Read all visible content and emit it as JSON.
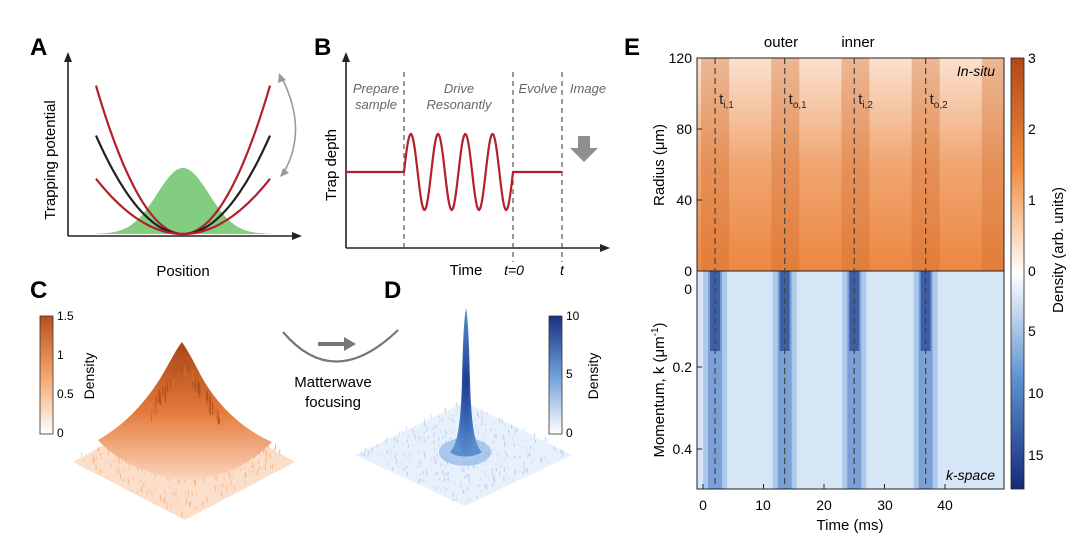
{
  "panels": {
    "A": {
      "letter": "A",
      "xlabel": "Position",
      "ylabel": "Trapping potential",
      "colors": {
        "red": "#b22028",
        "black": "#222222",
        "green": "#6cc46a",
        "grey": "#9a9a9a"
      }
    },
    "B": {
      "letter": "B",
      "xlabel": "Time",
      "ylabel": "Trap depth",
      "phases": [
        "Prepare sample",
        "Drive Resonantly",
        "Evolve",
        "Image"
      ],
      "phase_lines": [
        "Prepare",
        "sample",
        "Drive",
        "Resonantly",
        "Evolve",
        "Image"
      ],
      "marker_t0": "t=0",
      "marker_t": "t",
      "drive_cycles": 4
    },
    "C": {
      "letter": "C",
      "colorbar_label": "Density",
      "colorbar_ticks": [
        "1.5",
        "1",
        "0.5",
        "0"
      ]
    },
    "arrow": {
      "label_line1": "Matterwave",
      "label_line2": "focusing"
    },
    "D": {
      "letter": "D",
      "colorbar_label": "Density",
      "colorbar_ticks": [
        "10",
        "5",
        "0"
      ]
    },
    "E": {
      "letter": "E",
      "top_labels": [
        "outer",
        "inner"
      ],
      "insitu_label": "In-situ",
      "kspace_label": "k-space",
      "ylabel_top": "Radius (μm)",
      "ylabel_bottom": "Momentum, k (μm",
      "ylabel_bottom_sup": "-1",
      "ylabel_bottom_end": ")",
      "xlabel": "Time (ms)",
      "xticks": [
        "0",
        "10",
        "20",
        "30",
        "40"
      ],
      "yticks_top": [
        "120",
        "80",
        "40",
        "0"
      ],
      "yticks_bottom": [
        "0.2",
        "0.4"
      ],
      "yticks_bottom_zero": "0",
      "colorbar_label": "Density (arb. units)",
      "colorbar_ticks_top": [
        "3",
        "2",
        "1",
        "0"
      ],
      "colorbar_ticks_bottom": [
        "5",
        "10",
        "15"
      ],
      "time_markers": [
        {
          "base": "t",
          "sub": "i,1",
          "time_ms": 2.0
        },
        {
          "base": "t",
          "sub": "o,1",
          "time_ms": 13.5
        },
        {
          "base": "t",
          "sub": "i,2",
          "time_ms": 25.0
        },
        {
          "base": "t",
          "sub": "o,2",
          "time_ms": 36.8
        }
      ],
      "x_range_ms": [
        0,
        48
      ],
      "colors": {
        "orange_dark": "#c8561c",
        "orange_light": "#fbe3d0",
        "blue_dark": "#1c3c8c",
        "blue_light": "#e3eef9"
      }
    }
  }
}
